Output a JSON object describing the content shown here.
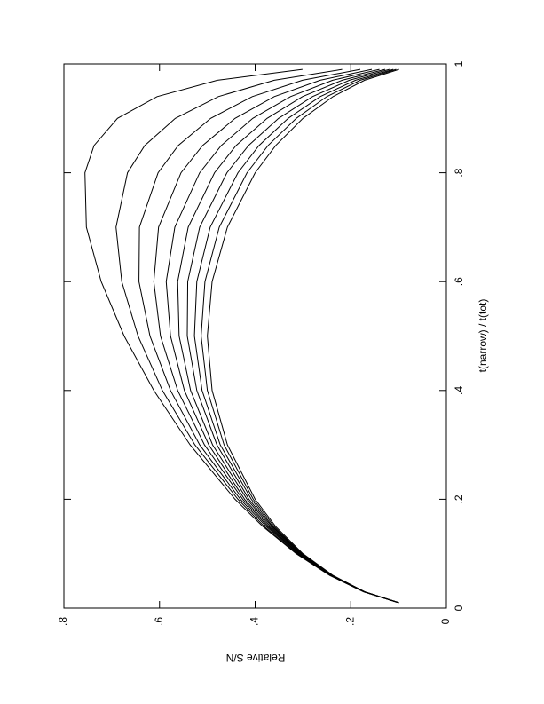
{
  "chart_data": {
    "type": "line",
    "x_label": "t(narrow) / t(tot)",
    "y_label": "Relative S/N",
    "color": "#000000",
    "xlim": [
      0,
      1
    ],
    "ylim": [
      0,
      0.8
    ],
    "xticks": [
      0,
      {
        "value": 0.2,
        "label": ".2"
      },
      {
        "value": 0.4,
        "label": ".4"
      },
      {
        "value": 0.6,
        "label": ".6"
      },
      {
        "value": 0.8,
        "label": ".8"
      },
      1
    ],
    "yticks": [
      0,
      {
        "value": 0.2,
        "label": ".2"
      },
      {
        "value": 0.4,
        "label": ".4"
      },
      {
        "value": 0.6,
        "label": ".6"
      },
      {
        "value": 0.8,
        "label": ".8"
      }
    ],
    "x": [
      0.01,
      0.03,
      0.06,
      0.1,
      0.15,
      0.2,
      0.3,
      0.4,
      0.5,
      0.6,
      0.7,
      0.8,
      0.85,
      0.9,
      0.94,
      0.97,
      0.99
    ],
    "series": [
      {
        "values": [
          0.1,
          0.173,
          0.244,
          0.314,
          0.384,
          0.442,
          0.536,
          0.612,
          0.674,
          0.722,
          0.753,
          0.756,
          0.737,
          0.688,
          0.605,
          0.479,
          0.301
        ]
      },
      {
        "values": [
          0.1,
          0.173,
          0.243,
          0.313,
          0.381,
          0.436,
          0.526,
          0.594,
          0.645,
          0.679,
          0.691,
          0.667,
          0.631,
          0.567,
          0.477,
          0.36,
          0.218
        ]
      },
      {
        "values": [
          0.1,
          0.172,
          0.243,
          0.311,
          0.377,
          0.431,
          0.516,
          0.577,
          0.62,
          0.643,
          0.642,
          0.603,
          0.561,
          0.493,
          0.406,
          0.301,
          0.18
        ]
      },
      {
        "values": [
          0.1,
          0.172,
          0.242,
          0.309,
          0.374,
          0.426,
          0.506,
          0.562,
          0.598,
          0.612,
          0.602,
          0.555,
          0.51,
          0.442,
          0.36,
          0.264,
          0.156
        ]
      },
      {
        "values": [
          0.1,
          0.172,
          0.241,
          0.308,
          0.371,
          0.422,
          0.497,
          0.548,
          0.577,
          0.586,
          0.568,
          0.516,
          0.471,
          0.405,
          0.326,
          0.238,
          0.14
        ]
      },
      {
        "values": [
          0.1,
          0.172,
          0.24,
          0.306,
          0.368,
          0.417,
          0.489,
          0.535,
          0.559,
          0.562,
          0.54,
          0.485,
          0.44,
          0.375,
          0.301,
          0.218,
          0.128
        ]
      },
      {
        "values": [
          0.1,
          0.171,
          0.24,
          0.305,
          0.365,
          0.413,
          0.48,
          0.522,
          0.542,
          0.541,
          0.516,
          0.459,
          0.414,
          0.351,
          0.28,
          0.203,
          0.119
        ]
      },
      {
        "values": [
          0.1,
          0.171,
          0.239,
          0.303,
          0.363,
          0.408,
          0.473,
          0.511,
          0.527,
          0.522,
          0.494,
          0.436,
          0.392,
          0.331,
          0.264,
          0.19,
          0.111
        ]
      },
      {
        "values": [
          0.1,
          0.171,
          0.238,
          0.302,
          0.36,
          0.404,
          0.465,
          0.5,
          0.513,
          0.505,
          0.475,
          0.417,
          0.373,
          0.314,
          0.25,
          0.18,
          0.105
        ]
      },
      {
        "values": [
          0.099,
          0.171,
          0.237,
          0.3,
          0.357,
          0.4,
          0.458,
          0.49,
          0.5,
          0.49,
          0.458,
          0.4,
          0.357,
          0.3,
          0.237,
          0.171,
          0.099
        ]
      }
    ]
  }
}
